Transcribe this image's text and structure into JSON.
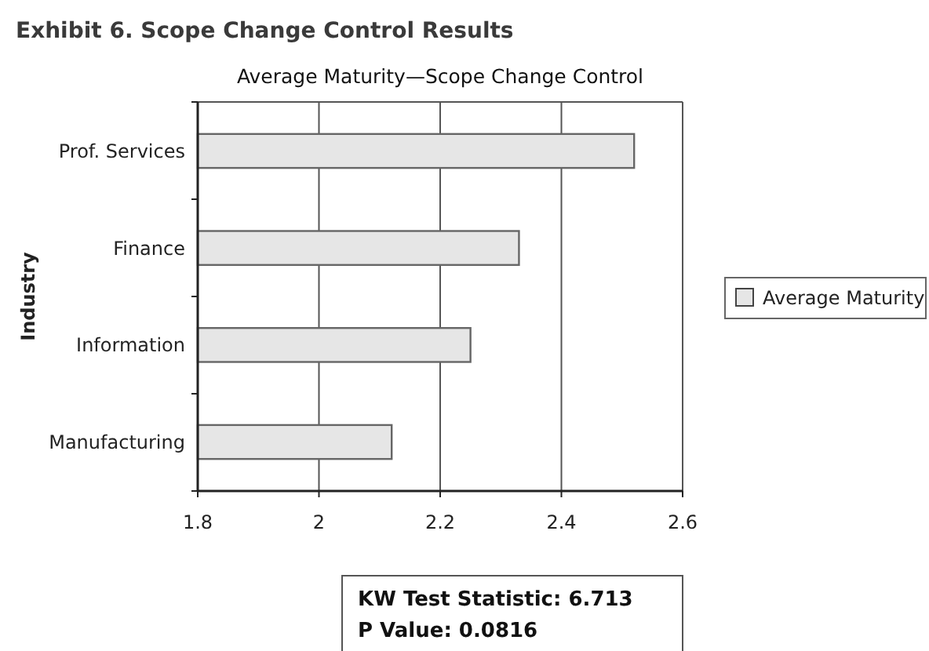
{
  "chart_data": {
    "type": "bar",
    "orientation": "horizontal",
    "title": "Exhibit 6. Scope Change Control Results",
    "subtitle": "Average Maturity—Scope Change Control",
    "ylabel": "Industry",
    "categories": [
      "Prof. Services",
      "Finance",
      "Information",
      "Manufacturing"
    ],
    "series": [
      {
        "name": "Average Maturity",
        "color": "#e6e6e6",
        "values": [
          2.52,
          2.33,
          2.25,
          2.12
        ]
      }
    ],
    "xlim": [
      1.8,
      2.6
    ],
    "xticks": [
      1.8,
      2,
      2.2,
      2.4,
      2.6
    ],
    "grid": "x",
    "legend": "right",
    "annotations": [
      "KW Test Statistic: 6.713",
      "P Value: 0.0816"
    ]
  }
}
